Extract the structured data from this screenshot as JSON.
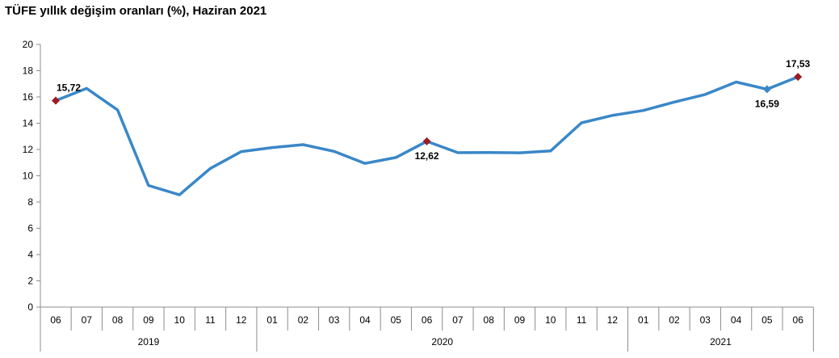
{
  "chart_data": {
    "type": "line",
    "title": "TÜFE yıllık değişim oranları (%), Haziran 2021",
    "xlabel": "",
    "ylabel": "",
    "ylim": [
      0,
      20
    ],
    "yticks": [
      "0",
      "2",
      "4",
      "6",
      "8",
      "10",
      "12",
      "14",
      "16",
      "18",
      "20"
    ],
    "grid": false,
    "legend": "none",
    "line_color": "#3a87c8",
    "marker_color": "#9b1c24",
    "categories": [
      "06",
      "07",
      "08",
      "09",
      "10",
      "11",
      "12",
      "01",
      "02",
      "03",
      "04",
      "05",
      "06",
      "07",
      "08",
      "09",
      "10",
      "11",
      "12",
      "01",
      "02",
      "03",
      "04",
      "05",
      "06"
    ],
    "years": [
      {
        "label": "2019",
        "start": 0,
        "end": 6
      },
      {
        "label": "2020",
        "start": 7,
        "end": 18
      },
      {
        "label": "2021",
        "start": 19,
        "end": 24
      }
    ],
    "series": [
      {
        "values": [
          15.72,
          16.65,
          15.01,
          9.26,
          8.55,
          10.56,
          11.84,
          12.15,
          12.37,
          11.86,
          10.94,
          11.39,
          12.62,
          11.76,
          11.77,
          11.75,
          11.89,
          14.03,
          14.6,
          14.97,
          15.61,
          16.19,
          17.14,
          16.59,
          17.53
        ]
      }
    ],
    "annotations": [
      {
        "index": 0,
        "text": "15,72",
        "pos": "above",
        "marker": "diamond"
      },
      {
        "index": 12,
        "text": "12,62",
        "pos": "below",
        "marker": "diamond"
      },
      {
        "index": 23,
        "text": "16,59",
        "pos": "below",
        "marker": "diamond-blue"
      },
      {
        "index": 24,
        "text": "17,53",
        "pos": "above",
        "marker": "diamond"
      }
    ]
  }
}
